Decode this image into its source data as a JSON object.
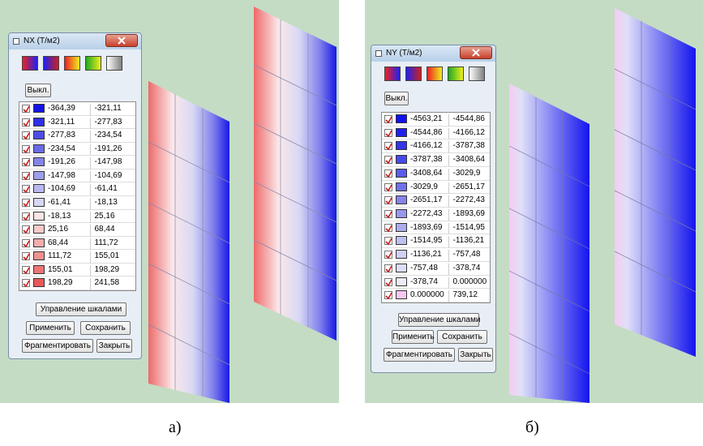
{
  "panels": [
    {
      "caption": "а)",
      "dialog": {
        "title": "NX (T/м2)",
        "off_button": "Выкл.",
        "rows": [
          {
            "color": "#1414e6",
            "cells": [
              "-364,39",
              "-321,11"
            ]
          },
          {
            "color": "#2e2ee8",
            "cells": [
              "-321,11",
              "-277,83"
            ]
          },
          {
            "color": "#4c4ce8",
            "cells": [
              "-277,83",
              "-234,54"
            ]
          },
          {
            "color": "#6a6ae8",
            "cells": [
              "-234,54",
              "-191,26"
            ]
          },
          {
            "color": "#8484ea",
            "cells": [
              "-191,26",
              "-147,98"
            ]
          },
          {
            "color": "#9e9eec",
            "cells": [
              "-147,98",
              "-104,69"
            ]
          },
          {
            "color": "#b8b8f0",
            "cells": [
              "-104,69",
              "-61,41"
            ]
          },
          {
            "color": "#d6d6f6",
            "cells": [
              "-61,41",
              "-18,13"
            ]
          },
          {
            "color": "#fbe4e4",
            "cells": [
              "-18,13",
              "25,16"
            ]
          },
          {
            "color": "#f8caca",
            "cells": [
              "25,16",
              "68,44"
            ]
          },
          {
            "color": "#f4acac",
            "cells": [
              "68,44",
              "111,72"
            ]
          },
          {
            "color": "#f09090",
            "cells": [
              "111,72",
              "155,01"
            ]
          },
          {
            "color": "#ec7474",
            "cells": [
              "155,01",
              "198,29"
            ]
          },
          {
            "color": "#e85858",
            "cells": [
              "198,29",
              "241,58"
            ]
          }
        ],
        "buttons": {
          "scales": "Управление шкалами",
          "apply": "Применить",
          "save": "Сохранить",
          "fragment": "Фрагментировать",
          "close": "Закрыть"
        }
      }
    },
    {
      "caption": "б)",
      "dialog": {
        "title": "NY (T/м2)",
        "off_button": "Выкл.",
        "rows": [
          {
            "color": "#1010f0",
            "cells": [
              "-4563,21",
              "-4544,86"
            ]
          },
          {
            "color": "#2020ee",
            "cells": [
              "-4544,86",
              "-4166,12"
            ]
          },
          {
            "color": "#3434ec",
            "cells": [
              "-4166,12",
              "-3787,38"
            ]
          },
          {
            "color": "#4848ea",
            "cells": [
              "-3787,38",
              "-3408,64"
            ]
          },
          {
            "color": "#5c5cea",
            "cells": [
              "-3408,64",
              "-3029,9"
            ]
          },
          {
            "color": "#7070ea",
            "cells": [
              "-3029,9",
              "-2651,17"
            ]
          },
          {
            "color": "#8484ec",
            "cells": [
              "-2651,17",
              "-2272,43"
            ]
          },
          {
            "color": "#9898ee",
            "cells": [
              "-2272,43",
              "-1893,69"
            ]
          },
          {
            "color": "#acacf0",
            "cells": [
              "-1893,69",
              "-1514,95"
            ]
          },
          {
            "color": "#c0c0f2",
            "cells": [
              "-1514,95",
              "-1136,21"
            ]
          },
          {
            "color": "#d0d0f4",
            "cells": [
              "-1136,21",
              "-757,48"
            ]
          },
          {
            "color": "#dedef6",
            "cells": [
              "-757,48",
              "-378,74"
            ]
          },
          {
            "color": "#ececf8",
            "cells": [
              "-378,74",
              "0.000000"
            ]
          },
          {
            "color": "#f6c8f0",
            "cells": [
              "0.000000",
              "739,12"
            ]
          }
        ],
        "buttons": {
          "scales": "Управление шкалами",
          "apply": "Применить",
          "save": "Сохранить",
          "fragment": "Фрагментировать",
          "close": "Закрыть"
        }
      }
    }
  ]
}
